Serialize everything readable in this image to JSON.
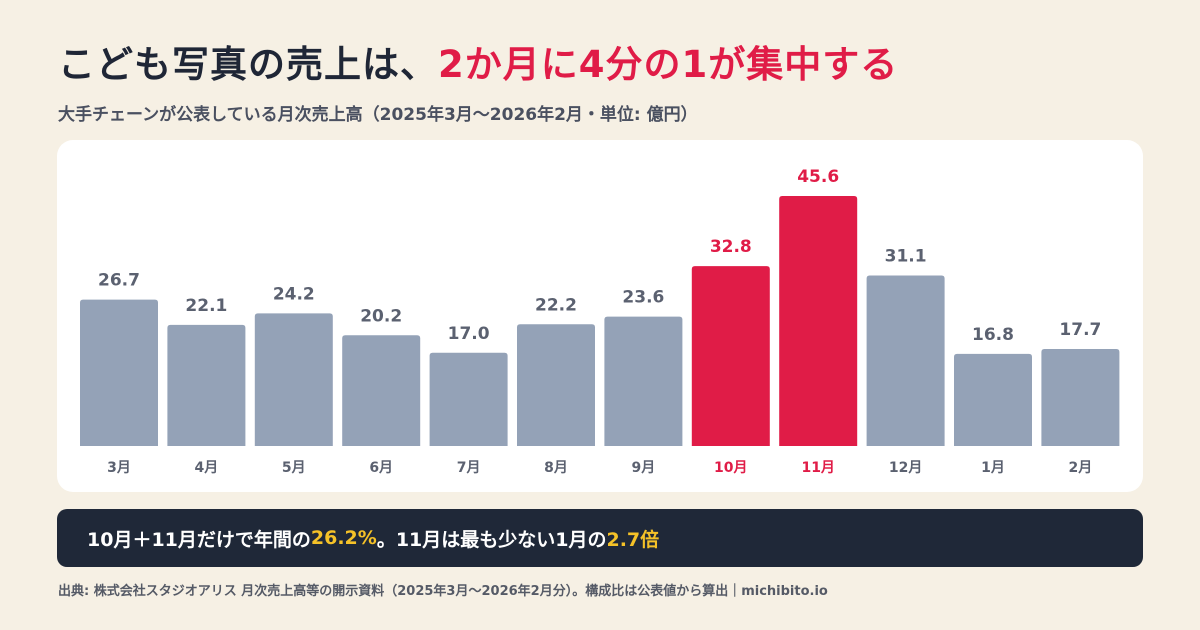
{
  "header": {
    "title_main": "こども写真の売上は、",
    "title_accent": "2か月に4分の1が集中する",
    "subtitle": "大手チェーンが公表している月次売上高（2025年3月〜2026年2月・単位: 億円）"
  },
  "summary": {
    "part1": "10月＋11月だけで年間の",
    "value1": "26.2%",
    "part2": "。11月は最も少ない1月の",
    "value2": "2.7倍"
  },
  "footer": {
    "source": "出典: 株式会社スタジオアリス 月次売上高等の開示資料（2025年3月〜2026年2月分）。構成比は公表値から算出｜michibito.io"
  },
  "colors": {
    "bar_default": "#94a2b7",
    "bar_highlight": "#e01c47",
    "label_default": "#5b6170",
    "label_highlight": "#e01c47"
  },
  "chart_data": {
    "type": "bar",
    "categories": [
      "3月",
      "4月",
      "5月",
      "6月",
      "7月",
      "8月",
      "9月",
      "10月",
      "11月",
      "12月",
      "1月",
      "2月"
    ],
    "values": [
      26.7,
      22.1,
      24.2,
      20.2,
      17.0,
      22.2,
      23.6,
      32.8,
      45.6,
      31.1,
      16.8,
      17.7
    ],
    "value_labels": [
      "26.7",
      "22.1",
      "24.2",
      "20.2",
      "17.0",
      "22.2",
      "23.6",
      "32.8",
      "45.6",
      "31.1",
      "16.8",
      "17.7"
    ],
    "highlighted": [
      "10月",
      "11月"
    ],
    "ylim": [
      0,
      45.6
    ],
    "grid": false,
    "legend": "none"
  }
}
